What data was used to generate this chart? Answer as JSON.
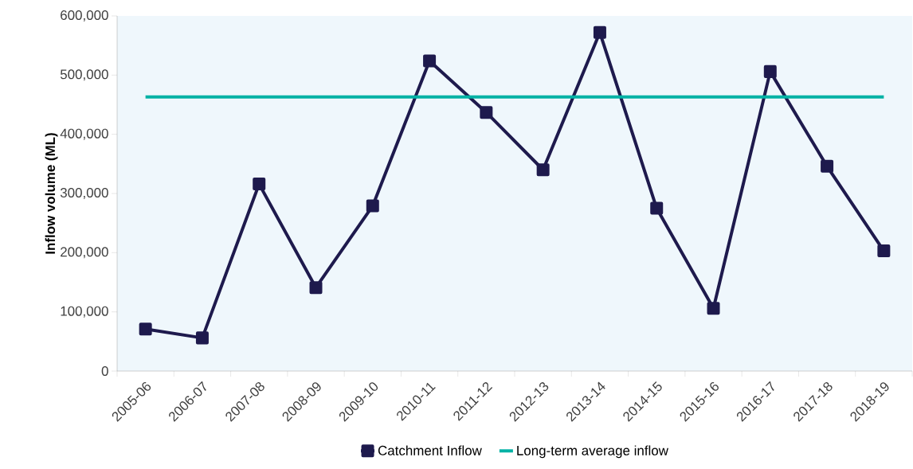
{
  "chart_data": {
    "type": "line",
    "ylabel": "Inflow volume (ML)",
    "categories": [
      "2005-06",
      "2006-07",
      "2007-08",
      "2008-09",
      "2009-10",
      "2010-11",
      "2011-12",
      "2012-13",
      "2013-14",
      "2014-15",
      "2015-16",
      "2016-17",
      "2017-18",
      "2018-19"
    ],
    "series": [
      {
        "name": "Catchment Inflow",
        "color": "#1e1a4d",
        "marker": "square",
        "values": [
          71000,
          56000,
          316000,
          141000,
          279000,
          524000,
          437000,
          340000,
          572000,
          275000,
          106000,
          506000,
          346000,
          203000
        ]
      },
      {
        "name": "Long-term average inflow",
        "color": "#00b2a5",
        "marker": "none",
        "values": [
          463000,
          463000,
          463000,
          463000,
          463000,
          463000,
          463000,
          463000,
          463000,
          463000,
          463000,
          463000,
          463000,
          463000
        ]
      }
    ],
    "ylim": [
      0,
      600000
    ],
    "yticks": [
      {
        "value": 0,
        "label": "0"
      },
      {
        "value": 100000,
        "label": "100,000"
      },
      {
        "value": 200000,
        "label": "200,000"
      },
      {
        "value": 300000,
        "label": "300,000"
      },
      {
        "value": 400000,
        "label": "400,000"
      },
      {
        "value": 500000,
        "label": "500,000"
      },
      {
        "value": 600000,
        "label": "600,000"
      }
    ],
    "grid": false,
    "legend": "bottom",
    "line_style": "solid"
  }
}
